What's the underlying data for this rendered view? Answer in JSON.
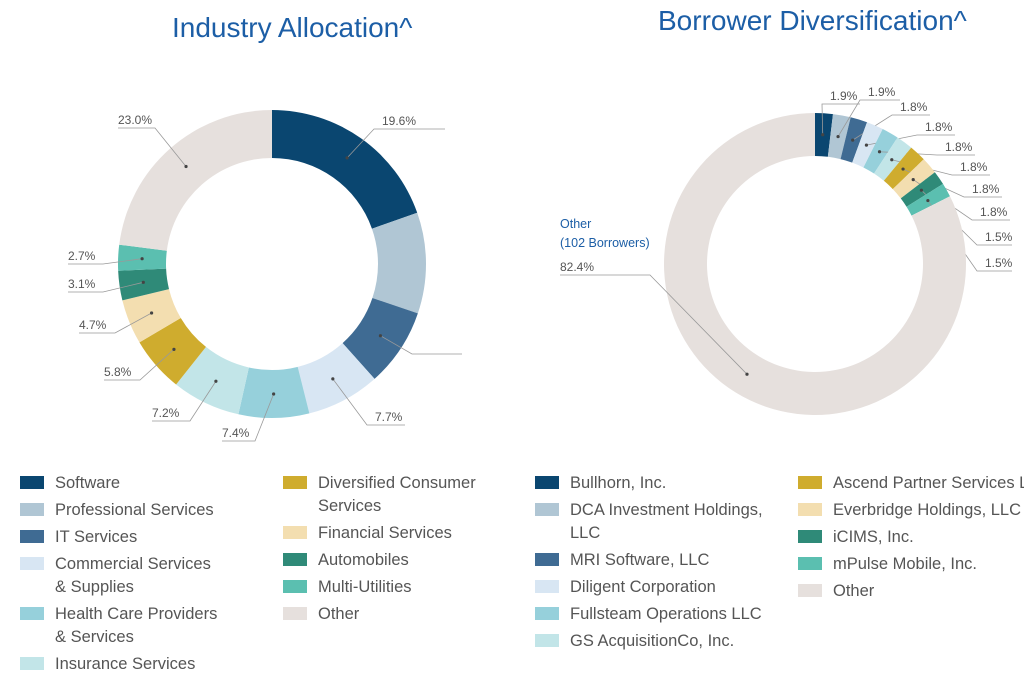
{
  "chart_data": [
    {
      "type": "pie",
      "title": "Industry Allocation^",
      "donut": true,
      "categories": [
        "Software",
        "Professional Services",
        "IT Services",
        "Commercial Services & Supplies",
        "Health Care Providers & Services",
        "Insurance Services",
        "Diversified Consumer Services",
        "Financial Services",
        "Automobiles",
        "Multi-Utilities",
        "Other"
      ],
      "legend_lines": [
        [
          "Software"
        ],
        [
          "Professional Services"
        ],
        [
          "IT Services"
        ],
        [
          "Commercial Services",
          "& Supplies"
        ],
        [
          "Health Care Providers",
          "& Services"
        ],
        [
          "Insurance Services"
        ],
        [
          "Diversified Consumer",
          "Services"
        ],
        [
          "Financial Services"
        ],
        [
          "Automobiles"
        ],
        [
          "Multi-Utilities"
        ],
        [
          "Other"
        ]
      ],
      "values": [
        19.6,
        10.6,
        8.2,
        7.7,
        7.4,
        7.2,
        5.8,
        4.7,
        3.1,
        2.7,
        23.0
      ],
      "data_labels": [
        "19.6%",
        "",
        "",
        "7.7%",
        "7.4%",
        "7.2%",
        "5.8%",
        "4.7%",
        "3.1%",
        "2.7%",
        "23.0%"
      ],
      "colors": [
        "#0a4670",
        "#b0c6d4",
        "#3f6b93",
        "#d8e6f3",
        "#96d0db",
        "#c2e5e8",
        "#cfac2e",
        "#f3deb0",
        "#2f8a78",
        "#5bbfb0",
        "#e6e0dd"
      ],
      "legend": "bottom"
    },
    {
      "type": "pie",
      "title": "Borrower Diversification^",
      "donut": true,
      "categories": [
        "Bullhorn, Inc.",
        "DCA Investment Holdings, LLC",
        "MRI Software, LLC",
        "Diligent Corporation",
        "Fullsteam Operations LLC",
        "GS AcquisitionCo, Inc.",
        "Ascend Partner Services LLC",
        "Everbridge Holdings, LLC",
        "iCIMS, Inc.",
        "mPulse Mobile, Inc.",
        "Other"
      ],
      "legend_lines": [
        [
          "Bullhorn, Inc."
        ],
        [
          "DCA Investment Holdings,",
          "LLC"
        ],
        [
          "MRI Software, LLC"
        ],
        [
          "Diligent Corporation"
        ],
        [
          "Fullsteam Operations LLC"
        ],
        [
          "GS AcquisitionCo, Inc."
        ],
        [
          "Ascend Partner Services LLC"
        ],
        [
          "Everbridge Holdings, LLC"
        ],
        [
          "iCIMS, Inc."
        ],
        [
          "mPulse Mobile, Inc."
        ],
        [
          "Other"
        ]
      ],
      "values": [
        1.9,
        1.9,
        1.8,
        1.8,
        1.8,
        1.8,
        1.8,
        1.8,
        1.5,
        1.5,
        82.4
      ],
      "data_labels": [
        "1.9%",
        "1.9%",
        "1.8%",
        "1.8%",
        "1.8%",
        "1.8%",
        "1.8%",
        "1.8%",
        "1.5%",
        "1.5%",
        "82.4%"
      ],
      "other_label": [
        "Other",
        "(102 Borrowers)"
      ],
      "colors": [
        "#0a4670",
        "#b0c6d4",
        "#3f6b93",
        "#d8e6f3",
        "#96d0db",
        "#c2e5e8",
        "#cfac2e",
        "#f3deb0",
        "#2f8a78",
        "#5bbfb0",
        "#e6e0dd"
      ],
      "legend": "bottom"
    }
  ]
}
